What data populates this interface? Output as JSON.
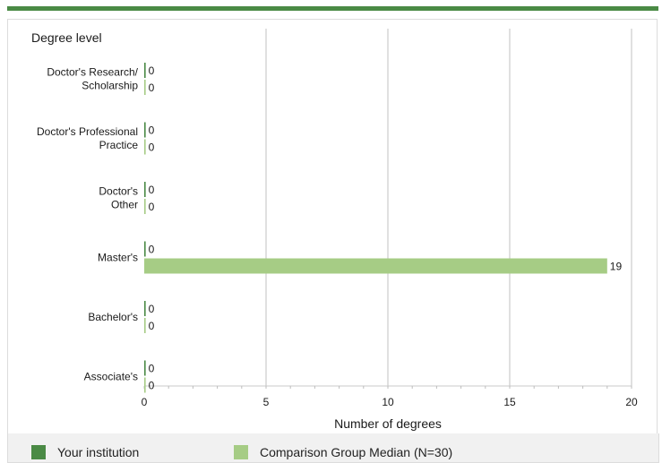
{
  "chart_data": {
    "type": "bar",
    "orientation": "horizontal",
    "title": "",
    "ylabel": "Degree level",
    "xlabel": "Number of degrees",
    "xlim": [
      0,
      20
    ],
    "xticks": [
      "0",
      "5",
      "10",
      "15",
      "20"
    ],
    "grid": true,
    "legend_position": "bottom",
    "categories": [
      [
        "Doctor's Research/",
        "Scholarship"
      ],
      [
        "Doctor's Professional",
        "Practice"
      ],
      [
        "Doctor's",
        "Other"
      ],
      [
        "Master's"
      ],
      [
        "Bachelor's"
      ],
      [
        "Associate's"
      ]
    ],
    "series": [
      {
        "name": "Your institution",
        "color": "#4a8a45",
        "values": [
          0,
          0,
          0,
          0,
          0,
          0
        ]
      },
      {
        "name": "Comparison Group Median (N=30)",
        "color": "#a6cc85",
        "values": [
          0,
          0,
          0,
          19,
          0,
          0
        ]
      }
    ]
  }
}
